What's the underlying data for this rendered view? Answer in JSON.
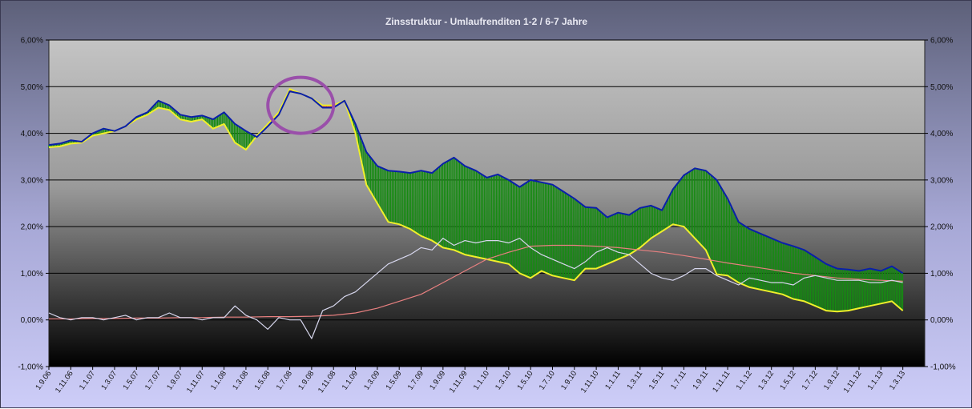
{
  "chart_data": {
    "type": "line",
    "title": "Zinsstruktur - Umlaufrenditen 1-2 / 6-7 Jahre",
    "xlabel": "",
    "ylabel": "",
    "ylim": [
      -1.0,
      6.0
    ],
    "ytick_labels_left": [
      "-1,00%",
      "0,00%",
      "1,00%",
      "2,00%",
      "3,00%",
      "4,00%",
      "5,00%",
      "6,00%"
    ],
    "ytick_labels_right": [
      "-1,00%",
      "0,00%",
      "1,00%",
      "2,00%",
      "3,00%",
      "4,00%",
      "5,00%",
      "6,00%"
    ],
    "x_tick_labels": [
      "1.9.06",
      "1.11.06",
      "1.1.07",
      "1.3.07",
      "1.5.07",
      "1.7.07",
      "1.9.07",
      "1.11.07",
      "1.1.08",
      "1.3.08",
      "1.5.08",
      "1.7.08",
      "1.9.08",
      "1.11.08",
      "1.1.09",
      "1.3.09",
      "1.5.09",
      "1.7.09",
      "1.9.09",
      "1.11.09",
      "1.1.10",
      "1.3.10",
      "1.5.10",
      "1.7.10",
      "1.9.10",
      "1.11.10",
      "1.1.11",
      "1.3.11",
      "1.5.11",
      "1.7.11",
      "1.9.11",
      "1.11.11",
      "1.1.12",
      "1.3.12",
      "1.5.12",
      "1.7.12",
      "1.9.12",
      "1.11.12",
      "1.1.13",
      "1.3.13"
    ],
    "grid": true,
    "legend": "none",
    "colors": {
      "long_yield": "#0a1faa",
      "short_yield": "#f0f02a",
      "spread_positive": "#168a12",
      "spread_inverted": "#e02020",
      "spread_line": "#d7d7ee",
      "moving_average": "#e88080",
      "highlight_ellipse": "#9a4faa",
      "plot_top": "#c4c4c4",
      "plot_bottom": "#000000"
    },
    "highlight": {
      "x_from": "1.5.08",
      "x_to": "1.11.08",
      "y_from": 4.0,
      "y_to": 5.2
    },
    "series": [
      {
        "role": "long",
        "x": [
          0,
          1,
          2,
          3,
          4,
          5,
          6,
          7,
          8,
          9,
          10,
          11,
          12,
          13,
          14,
          15,
          16,
          17,
          18,
          19,
          20,
          21,
          22,
          23,
          24,
          25,
          26,
          27,
          28,
          29,
          30,
          31,
          32,
          33,
          34,
          35,
          36,
          37,
          38,
          39,
          40,
          41,
          42,
          43,
          44,
          45,
          46,
          47,
          48,
          49,
          50,
          51,
          52,
          53,
          54,
          55,
          56,
          57,
          58,
          59,
          60,
          61,
          62,
          63,
          64,
          65,
          66,
          67,
          68,
          69,
          70,
          71,
          72,
          73,
          74,
          75,
          76,
          77,
          78
        ],
        "values": [
          3.75,
          3.78,
          3.85,
          3.82,
          4.0,
          4.1,
          4.05,
          4.15,
          4.35,
          4.45,
          4.7,
          4.6,
          4.4,
          4.35,
          4.38,
          4.3,
          4.45,
          4.2,
          4.05,
          3.92,
          4.15,
          4.4,
          4.9,
          4.85,
          4.75,
          4.55,
          4.55,
          4.7,
          4.2,
          3.6,
          3.3,
          3.2,
          3.18,
          3.15,
          3.2,
          3.15,
          3.35,
          3.48,
          3.3,
          3.2,
          3.05,
          3.12,
          3.0,
          2.85,
          3.0,
          2.95,
          2.9,
          2.75,
          2.6,
          2.42,
          2.4,
          2.2,
          2.3,
          2.25,
          2.4,
          2.45,
          2.35,
          2.8,
          3.1,
          3.25,
          3.2,
          3.0,
          2.6,
          2.1,
          1.95,
          1.85,
          1.75,
          1.65,
          1.58,
          1.5,
          1.35,
          1.2,
          1.1,
          1.08,
          1.05,
          1.1,
          1.05,
          1.15,
          1.0
        ]
      },
      {
        "role": "short",
        "x": [
          0,
          1,
          2,
          3,
          4,
          5,
          6,
          7,
          8,
          9,
          10,
          11,
          12,
          13,
          14,
          15,
          16,
          17,
          18,
          19,
          20,
          21,
          22,
          23,
          24,
          25,
          26,
          27,
          28,
          29,
          30,
          31,
          32,
          33,
          34,
          35,
          36,
          37,
          38,
          39,
          40,
          41,
          42,
          43,
          44,
          45,
          46,
          47,
          48,
          49,
          50,
          51,
          52,
          53,
          54,
          55,
          56,
          57,
          58,
          59,
          60,
          61,
          62,
          63,
          64,
          65,
          66,
          67,
          68,
          69,
          70,
          71,
          72,
          73,
          74,
          75,
          76,
          77,
          78
        ],
        "values": [
          3.7,
          3.72,
          3.78,
          3.8,
          3.95,
          4.0,
          4.05,
          4.15,
          4.3,
          4.4,
          4.55,
          4.5,
          4.3,
          4.25,
          4.3,
          4.1,
          4.2,
          3.8,
          3.65,
          3.95,
          4.2,
          4.45,
          4.95,
          4.85,
          4.75,
          4.6,
          4.6,
          4.7,
          4.0,
          2.9,
          2.5,
          2.1,
          2.05,
          1.95,
          1.8,
          1.7,
          1.55,
          1.5,
          1.4,
          1.35,
          1.3,
          1.25,
          1.2,
          1.0,
          0.9,
          1.05,
          0.95,
          0.9,
          0.85,
          1.1,
          1.1,
          1.2,
          1.3,
          1.4,
          1.55,
          1.75,
          1.9,
          2.05,
          2.0,
          1.75,
          1.5,
          0.98,
          0.95,
          0.8,
          0.7,
          0.65,
          0.6,
          0.55,
          0.45,
          0.4,
          0.3,
          0.2,
          0.18,
          0.2,
          0.25,
          0.3,
          0.35,
          0.4,
          0.2
        ]
      },
      {
        "role": "spread",
        "x": [
          0,
          1,
          2,
          3,
          4,
          5,
          6,
          7,
          8,
          9,
          10,
          11,
          12,
          13,
          14,
          15,
          16,
          17,
          18,
          19,
          20,
          21,
          22,
          23,
          24,
          25,
          26,
          27,
          28,
          29,
          30,
          31,
          32,
          33,
          34,
          35,
          36,
          37,
          38,
          39,
          40,
          41,
          42,
          43,
          44,
          45,
          46,
          47,
          48,
          49,
          50,
          51,
          52,
          53,
          54,
          55,
          56,
          57,
          58,
          59,
          60,
          61,
          62,
          63,
          64,
          65,
          66,
          67,
          68,
          69,
          70,
          71,
          72,
          73,
          74,
          75,
          76,
          77,
          78
        ],
        "values": [
          0.15,
          0.05,
          0.0,
          0.05,
          0.05,
          0.0,
          0.05,
          0.1,
          0.0,
          0.05,
          0.05,
          0.15,
          0.05,
          0.05,
          0.0,
          0.05,
          0.05,
          0.3,
          0.1,
          0.0,
          -0.2,
          0.05,
          0.0,
          0.0,
          -0.4,
          0.2,
          0.3,
          0.5,
          0.6,
          0.8,
          1.0,
          1.2,
          1.3,
          1.4,
          1.55,
          1.5,
          1.75,
          1.6,
          1.7,
          1.65,
          1.7,
          1.7,
          1.65,
          1.75,
          1.55,
          1.4,
          1.3,
          1.2,
          1.1,
          1.25,
          1.45,
          1.55,
          1.45,
          1.4,
          1.2,
          1.0,
          0.9,
          0.85,
          0.95,
          1.1,
          1.1,
          0.95,
          0.85,
          0.75,
          0.9,
          0.85,
          0.8,
          0.8,
          0.75,
          0.9,
          0.95,
          0.9,
          0.85,
          0.85,
          0.85,
          0.8,
          0.8,
          0.85,
          0.8
        ]
      },
      {
        "role": "moving_average",
        "x": [
          0,
          2,
          4,
          6,
          8,
          10,
          12,
          14,
          16,
          18,
          20,
          22,
          24,
          26,
          28,
          30,
          32,
          34,
          36,
          38,
          40,
          42,
          44,
          46,
          48,
          50,
          52,
          54,
          56,
          58,
          60,
          62,
          64,
          66,
          68,
          70,
          72,
          74,
          76,
          78
        ],
        "values": [
          0.02,
          0.02,
          0.03,
          0.03,
          0.04,
          0.04,
          0.05,
          0.05,
          0.06,
          0.06,
          0.07,
          0.07,
          0.08,
          0.1,
          0.15,
          0.25,
          0.4,
          0.55,
          0.8,
          1.05,
          1.3,
          1.45,
          1.58,
          1.6,
          1.6,
          1.58,
          1.55,
          1.5,
          1.45,
          1.38,
          1.3,
          1.22,
          1.15,
          1.08,
          1.0,
          0.95,
          0.9,
          0.87,
          0.85,
          0.83
        ]
      }
    ]
  }
}
